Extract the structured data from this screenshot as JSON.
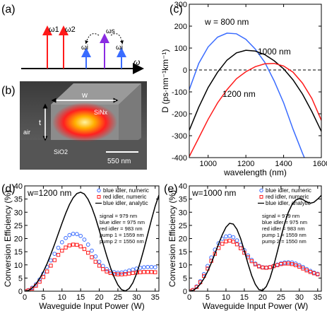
{
  "panels": {
    "a": {
      "label": "(a)",
      "arrow_labels": [
        "ω1",
        "ω2",
        "ωi",
        "ωs",
        "ωi",
        "ω"
      ],
      "colors": {
        "pump": "#ff1a1a",
        "signal": "#8a2be2",
        "idler": "#3a6cff",
        "axis": "#000000"
      }
    },
    "b": {
      "label": "(b)",
      "w_label": "w",
      "t_label": "t",
      "core_label": "SiNx",
      "substrate_label": "SiO2",
      "air_label": "air",
      "scalebar_label": "550 nm"
    }
  },
  "chart_data": [
    {
      "id": "c",
      "panel_label": "(c)",
      "type": "line",
      "xlabel": "wavelength (nm)",
      "ylabel": "D (ps·nm⁻¹km⁻¹)",
      "xlim": [
        900,
        1600
      ],
      "ylim": [
        -400,
        300
      ],
      "xticks": [
        1000,
        1200,
        1400,
        1600
      ],
      "yticks": [
        -400,
        -300,
        -200,
        -100,
        0,
        100,
        200,
        300
      ],
      "zero_line": "dashed",
      "annotations": [
        "w = 800 nm",
        "1000 nm",
        "1200 nm"
      ],
      "series": [
        {
          "name": "w = 800 nm",
          "color": "#3a6cff",
          "x": [
            900,
            950,
            1000,
            1050,
            1100,
            1150,
            1200,
            1250,
            1300,
            1350,
            1400,
            1450,
            1500,
            1550
          ],
          "y": [
            -90,
            30,
            105,
            150,
            168,
            165,
            140,
            95,
            35,
            -50,
            -150,
            -270,
            -380,
            -480
          ]
        },
        {
          "name": "1000 nm",
          "color": "#000000",
          "x": [
            900,
            950,
            1000,
            1050,
            1100,
            1150,
            1200,
            1250,
            1300,
            1350,
            1400,
            1450,
            1500,
            1550,
            1600
          ],
          "y": [
            -275,
            -170,
            -80,
            -10,
            45,
            78,
            90,
            86,
            70,
            42,
            5,
            -45,
            -110,
            -190,
            -280
          ]
        },
        {
          "name": "1200 nm",
          "color": "#ff1a1a",
          "x": [
            900,
            950,
            1000,
            1050,
            1100,
            1150,
            1200,
            1250,
            1300,
            1350,
            1400,
            1450,
            1500,
            1550,
            1600
          ],
          "y": [
            -395,
            -310,
            -225,
            -150,
            -90,
            -40,
            -8,
            15,
            28,
            30,
            18,
            -10,
            -60,
            -130,
            -230
          ]
        }
      ]
    },
    {
      "id": "d",
      "panel_label": "(d)",
      "type": "line",
      "xlabel": "Waveguide Input Power (W)",
      "ylabel": "Conversion Efficiency (%)",
      "xlim": [
        0,
        36
      ],
      "ylim": [
        0,
        40
      ],
      "xticks": [
        0,
        5,
        10,
        15,
        20,
        25,
        30,
        35
      ],
      "yticks": [
        0,
        5,
        10,
        15,
        20,
        25,
        30,
        35,
        40
      ],
      "inset_title": "w=1200 nm",
      "legend": [
        "blue idler, numeric",
        "red idler, numeric",
        "blue idler, analytic"
      ],
      "legend_position": "top-right",
      "notes": [
        "signal = 979 nm",
        "blue idler = 975 nm",
        "red idler = 983 nm",
        "pump 1 = 1559 nm",
        "pump 2 = 1550 nm"
      ],
      "series": [
        {
          "name": "blue idler, numeric",
          "color": "#3a6cff",
          "marker": "circle",
          "x": [
            0,
            1,
            2,
            3,
            4,
            5,
            6,
            7,
            8,
            9,
            10,
            11,
            12,
            13,
            14,
            15,
            16,
            17,
            18,
            19,
            20,
            21,
            22,
            23,
            24,
            25,
            26,
            27,
            28,
            29,
            30,
            31,
            32,
            33,
            34,
            35
          ],
          "y": [
            0,
            0.4,
            1.3,
            2.6,
            4.4,
            6.7,
            9.2,
            11.7,
            14.2,
            16.5,
            18.6,
            20.2,
            21.3,
            21.8,
            21.7,
            21.0,
            19.6,
            17.7,
            15.4,
            13.2,
            11.2,
            9.6,
            8.4,
            7.6,
            7.2,
            7.0,
            7.1,
            7.4,
            7.8,
            8.2,
            8.6,
            8.9,
            9.1,
            9.2,
            9.2,
            9.1
          ]
        },
        {
          "name": "red idler, numeric",
          "color": "#ff1a1a",
          "marker": "square",
          "x": [
            0,
            1,
            2,
            3,
            4,
            5,
            6,
            7,
            8,
            9,
            10,
            11,
            12,
            13,
            14,
            15,
            16,
            17,
            18,
            19,
            20,
            21,
            22,
            23,
            24,
            25,
            26,
            27,
            28,
            29,
            30,
            31,
            32,
            33,
            34,
            35
          ],
          "y": [
            0,
            0.3,
            1.0,
            2.1,
            3.6,
            5.4,
            7.5,
            9.7,
            11.8,
            13.8,
            15.4,
            16.6,
            17.4,
            17.7,
            17.6,
            17.0,
            16.0,
            14.6,
            12.9,
            11.2,
            9.7,
            8.4,
            7.5,
            6.9,
            6.5,
            6.4,
            6.4,
            6.5,
            6.7,
            6.9,
            7.1,
            7.2,
            7.3,
            7.3,
            7.3,
            7.2
          ]
        },
        {
          "name": "blue idler, analytic",
          "color": "#000000",
          "marker": "none",
          "x": [
            0,
            1,
            2,
            3,
            4,
            5,
            6,
            7,
            8,
            9,
            10,
            11,
            12,
            13,
            14,
            15,
            16,
            17,
            18,
            19,
            20,
            21,
            22,
            23,
            24,
            25,
            26,
            27,
            28,
            29,
            30,
            31,
            32,
            33,
            34,
            35,
            36
          ],
          "y": [
            0,
            0.3,
            1.2,
            2.7,
            4.8,
            7.4,
            10.5,
            14.0,
            17.8,
            21.8,
            25.8,
            29.6,
            32.9,
            35.5,
            37.1,
            37.6,
            36.9,
            34.9,
            31.8,
            27.8,
            23.1,
            18.2,
            13.4,
            9.0,
            5.3,
            2.4,
            0.6,
            0.1,
            1.0,
            3.2,
            6.6,
            11.0,
            16.1,
            21.6,
            27.1,
            32.3,
            36.5
          ]
        }
      ]
    },
    {
      "id": "e",
      "panel_label": "(e)",
      "type": "line",
      "xlabel": "Waveguide Input Power (W)",
      "ylabel": "Conversion Efficiency (%)",
      "xlim": [
        0,
        36
      ],
      "ylim": [
        0,
        40
      ],
      "xticks": [
        0,
        5,
        10,
        15,
        20,
        25,
        30,
        35
      ],
      "yticks": [
        0,
        5,
        10,
        15,
        20,
        25,
        30,
        35,
        40
      ],
      "inset_title": "w=1000 nm",
      "legend": [
        "blue idler, numeric",
        "red idler, numeric",
        "blue idler, analytic"
      ],
      "legend_position": "top-right",
      "notes": [
        "signal = 979 nm",
        "blue idler = 975 nm",
        "red idler = 983 nm",
        "pump 1 = 1559 nm",
        "pump 2 = 1550 nm"
      ],
      "series": [
        {
          "name": "blue idler, numeric",
          "color": "#3a6cff",
          "marker": "circle",
          "x": [
            0,
            1,
            2,
            3,
            4,
            5,
            6,
            7,
            8,
            9,
            10,
            11,
            12,
            13,
            14,
            15,
            16,
            17,
            18,
            19,
            20,
            21,
            22,
            23,
            24,
            25,
            26,
            27,
            28,
            29,
            30,
            31,
            32,
            33,
            34,
            35
          ],
          "y": [
            0,
            0.5,
            1.8,
            3.8,
            6.5,
            9.6,
            12.8,
            15.8,
            18.2,
            19.9,
            20.8,
            21.0,
            20.5,
            19.3,
            17.6,
            15.6,
            13.6,
            11.9,
            10.5,
            9.6,
            9.1,
            9.0,
            9.2,
            9.6,
            10.1,
            10.6,
            10.9,
            11.0,
            10.9,
            10.5,
            9.9,
            9.2,
            8.4,
            7.7,
            7.1,
            6.6
          ]
        },
        {
          "name": "red idler, numeric",
          "color": "#ff1a1a",
          "marker": "square",
          "x": [
            0,
            1,
            2,
            3,
            4,
            5,
            6,
            7,
            8,
            9,
            10,
            11,
            12,
            13,
            14,
            15,
            16,
            17,
            18,
            19,
            20,
            21,
            22,
            23,
            24,
            25,
            26,
            27,
            28,
            29,
            30,
            31,
            32,
            33,
            34,
            35
          ],
          "y": [
            0,
            0.4,
            1.6,
            3.4,
            5.8,
            8.6,
            11.5,
            14.2,
            16.4,
            18.0,
            18.9,
            19.2,
            18.8,
            17.8,
            16.3,
            14.6,
            12.9,
            11.4,
            10.2,
            9.4,
            9.0,
            8.9,
            9.1,
            9.5,
            9.9,
            10.3,
            10.5,
            10.5,
            10.3,
            9.9,
            9.3,
            8.6,
            7.9,
            7.3,
            6.8,
            6.4
          ]
        },
        {
          "name": "blue idler, analytic",
          "color": "#000000",
          "marker": "none",
          "x": [
            0,
            1,
            2,
            3,
            4,
            5,
            6,
            7,
            8,
            9,
            10,
            11,
            12,
            13,
            14,
            15,
            16,
            17,
            18,
            19,
            20,
            21,
            22,
            23,
            24,
            25,
            26,
            27,
            28,
            29,
            30,
            31,
            32,
            33,
            34,
            35,
            36
          ],
          "y": [
            0,
            0.3,
            1.2,
            2.7,
            4.8,
            7.5,
            10.7,
            14.3,
            18.0,
            21.5,
            24.3,
            25.8,
            25.5,
            23.5,
            20.0,
            15.4,
            10.5,
            6.0,
            2.6,
            0.6,
            0.3,
            1.8,
            5.0,
            9.6,
            15.0,
            20.6,
            25.8,
            30.0,
            32.9,
            34.6,
            35.2,
            34.8,
            33.9,
            33.4,
            33.8,
            35.0,
            36.4
          ]
        }
      ]
    }
  ]
}
